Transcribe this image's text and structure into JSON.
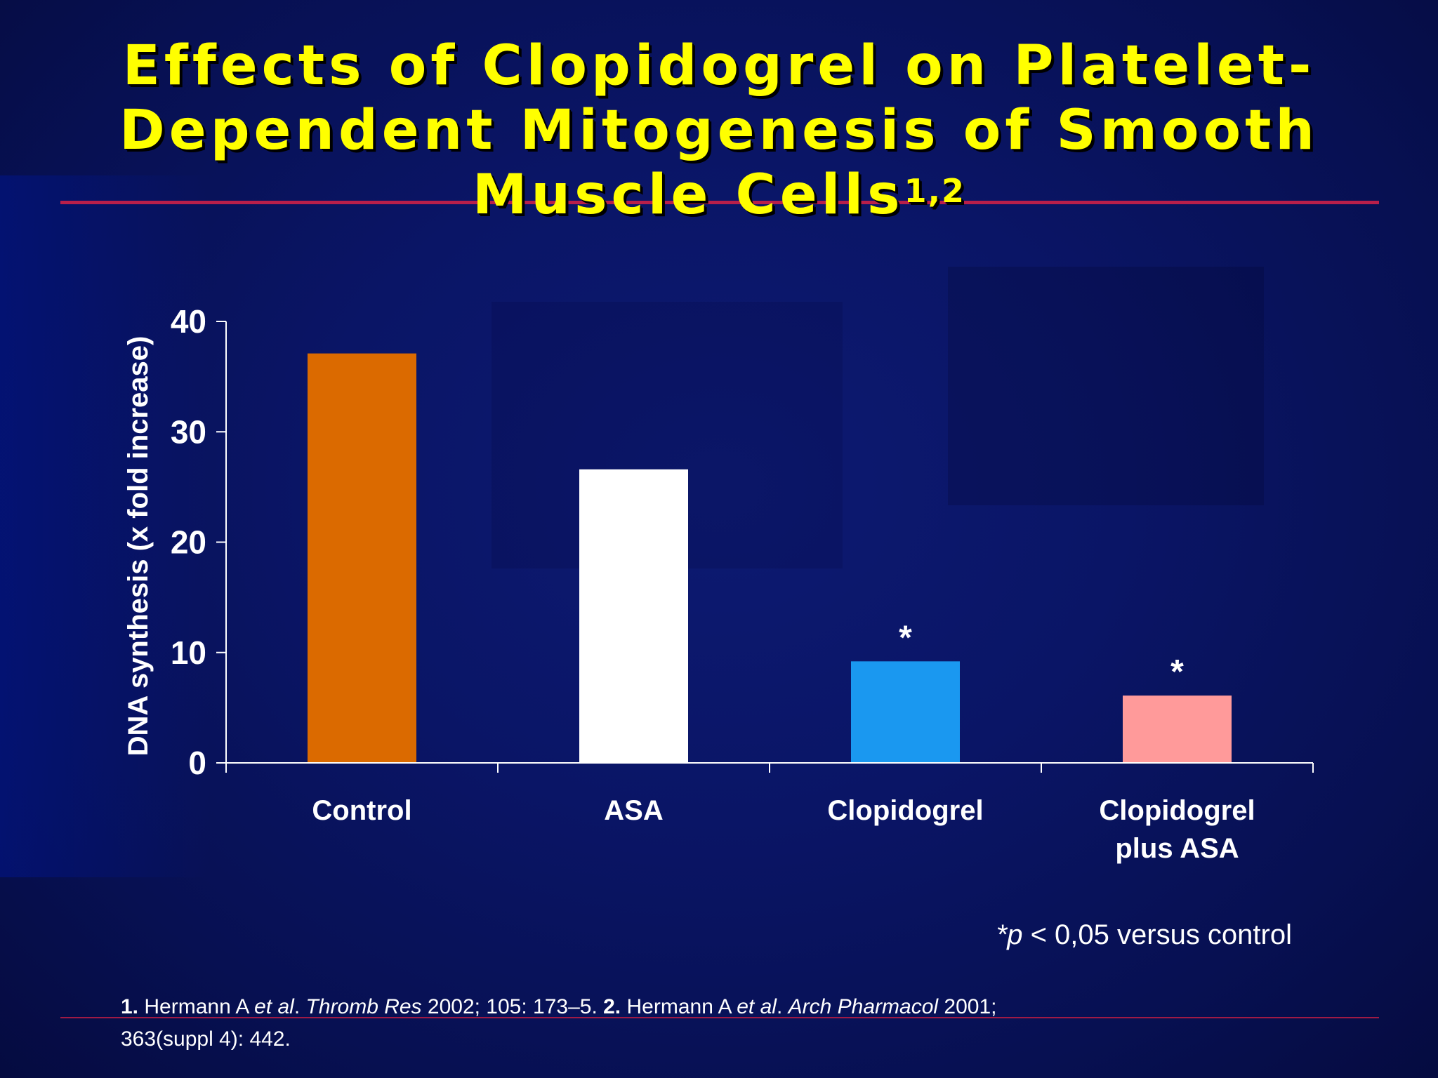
{
  "title": {
    "line1": "Effects of Clopidogrel on Platelet-",
    "line2": "Dependent Mitogenesis of Smooth",
    "line3": "Muscle Cells",
    "superscript": "1,2"
  },
  "colors": {
    "title": "#ffff00",
    "rule": "#b81f4a",
    "control": "#db6a00",
    "asa": "#ffffff",
    "clopidogrel": "#1a98f0",
    "clopidogrel_plus_asa": "#ff9a9a"
  },
  "chart_data": {
    "type": "bar",
    "ylabel": "DNA synthesis (x fold increase)",
    "xlabel": "",
    "ylim": [
      0,
      40
    ],
    "yticks": [
      "0",
      "10",
      "20",
      "30",
      "40"
    ],
    "categories": [
      {
        "line1": "Control",
        "line2": ""
      },
      {
        "line1": "ASA",
        "line2": ""
      },
      {
        "line1": "Clopidogrel",
        "line2": ""
      },
      {
        "line1": "Clopidogrel",
        "line2": "plus ASA"
      }
    ],
    "values": [
      37.1,
      26.6,
      9.2,
      6.1
    ],
    "significance": [
      "",
      "",
      "*",
      "*"
    ],
    "grid": false,
    "legend": "none"
  },
  "footnote": {
    "p_symbol": "*p",
    "p_text": " < 0,05 versus control"
  },
  "references": {
    "r1_num": "1.",
    "r1_author": " Hermann A ",
    "r1_etal": "et al",
    "r1_dot": ". ",
    "r1_journal": "Thromb Res",
    "r1_cite": " 2002; 105: 173–5. ",
    "r2_num": "2.",
    "r2_author": " Hermann A ",
    "r2_etal": "et al",
    "r2_dot": ". ",
    "r2_journal": "Arch Pharmacol",
    "r2_cite": " 2001;",
    "r2_cite2": "363(suppl 4): 442."
  }
}
